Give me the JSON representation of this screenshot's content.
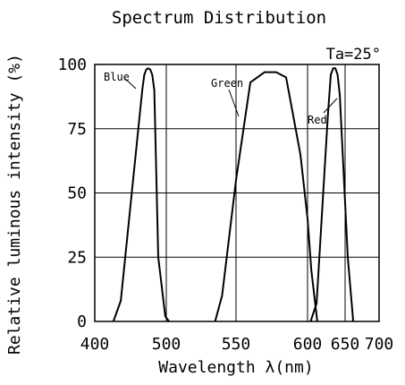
{
  "chart_data": {
    "type": "line",
    "title": "Spectrum Distribution",
    "annotation": "Ta=25°",
    "xlabel": "Wavelength λ(nm)",
    "ylabel": "Relative luminous intensity (%)",
    "xlim": [
      400,
      700
    ],
    "ylim": [
      0,
      100
    ],
    "x_ticks": [
      "400",
      "500",
      "550",
      "600",
      "650",
      "700"
    ],
    "y_ticks": [
      "0",
      "25",
      "50",
      "75",
      "100"
    ],
    "grid": true,
    "series": [
      {
        "name": "Blue",
        "x": [
          420,
          428,
          452,
          456,
          460,
          464,
          468,
          472,
          476,
          484,
          498,
          502
        ],
        "y": [
          0,
          8,
          90,
          96,
          98,
          98.5,
          98,
          96,
          90,
          25,
          2,
          0
        ]
      },
      {
        "name": "Green",
        "x": [
          535,
          540,
          550,
          560,
          570,
          578,
          585,
          595,
          600,
          605,
          613
        ],
        "y": [
          0,
          10,
          55,
          93,
          97,
          97,
          95,
          65,
          40,
          20,
          0
        ]
      },
      {
        "name": "Red",
        "x": [
          604,
          612,
          627,
          631,
          634,
          637,
          640,
          643,
          654,
          662
        ],
        "y": [
          0,
          7,
          80,
          96,
          98.5,
          98.5,
          96,
          88,
          25,
          0
        ]
      }
    ]
  }
}
